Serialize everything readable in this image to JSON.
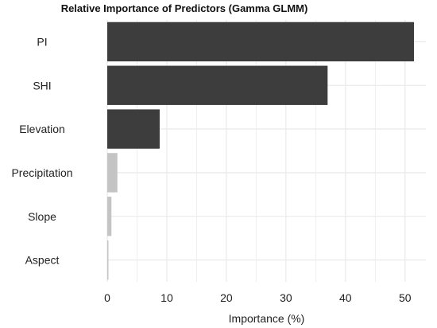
{
  "chart_data": {
    "type": "bar",
    "orientation": "horizontal",
    "title": "Relative Importance of Predictors (Gamma GLMM)",
    "xlabel": "Importance (%)",
    "ylabel": "",
    "categories": [
      "PI",
      "SHI",
      "Elevation",
      "Precipitation",
      "Slope",
      "Aspect"
    ],
    "values": [
      51.5,
      37.0,
      8.8,
      1.7,
      0.7,
      0.2
    ],
    "xlim": [
      0,
      53.5
    ],
    "x_ticks": [
      0,
      10,
      20,
      30,
      40,
      50
    ],
    "grid": true,
    "legend": "none",
    "colors": {
      "significant": "#3d3d3d",
      "other": "#c4c4c4",
      "grid": "#ebebeb"
    },
    "significant": [
      true,
      true,
      true,
      false,
      false,
      false
    ]
  }
}
